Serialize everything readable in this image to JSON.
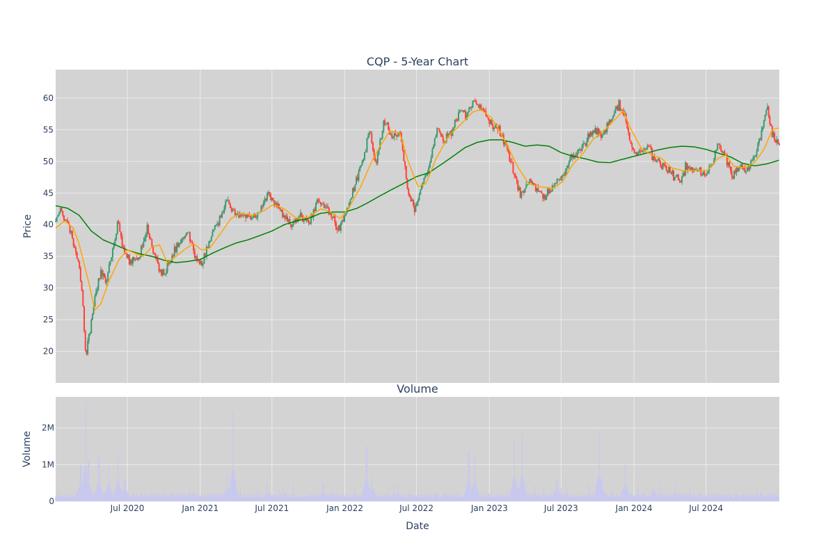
{
  "chart_data": [
    {
      "type": "candlestick",
      "title": "CQP - 5-Year Chart",
      "ylabel": "Price",
      "xlabel": "",
      "ylim": [
        15,
        64.5
      ],
      "yticks": [
        20,
        25,
        30,
        35,
        40,
        45,
        50,
        55,
        60
      ],
      "x_range": [
        "2020-01-02",
        "2025-01-02"
      ],
      "grid": true,
      "legend": "none",
      "colors": {
        "increasing": "#3d9970",
        "decreasing": "#ff4136",
        "ma_short": "#ffa500",
        "ma_long": "#008000",
        "plot_bg": "#d3d3d3",
        "grid": "#ebebeb"
      },
      "price_path": [
        [
          "2020-01-02",
          40.5
        ],
        [
          "2020-01-15",
          42.3
        ],
        [
          "2020-02-01",
          40.2
        ],
        [
          "2020-02-15",
          37.0
        ],
        [
          "2020-03-01",
          34.0
        ],
        [
          "2020-03-10",
          28.0
        ],
        [
          "2020-03-18",
          18.5
        ],
        [
          "2020-03-25",
          22.0
        ],
        [
          "2020-04-10",
          28.5
        ],
        [
          "2020-04-25",
          32.5
        ],
        [
          "2020-05-10",
          31.5
        ],
        [
          "2020-05-25",
          36.0
        ],
        [
          "2020-06-08",
          40.5
        ],
        [
          "2020-06-25",
          35.0
        ],
        [
          "2020-07-15",
          34.0
        ],
        [
          "2020-08-01",
          35.0
        ],
        [
          "2020-08-20",
          39.5
        ],
        [
          "2020-09-05",
          36.0
        ],
        [
          "2020-09-20",
          33.5
        ],
        [
          "2020-10-01",
          32.0
        ],
        [
          "2020-10-20",
          35.0
        ],
        [
          "2020-11-10",
          37.0
        ],
        [
          "2020-12-01",
          39.0
        ],
        [
          "2020-12-20",
          35.0
        ],
        [
          "2021-01-04",
          33.5
        ],
        [
          "2021-01-20",
          37.0
        ],
        [
          "2021-02-10",
          40.0
        ],
        [
          "2021-03-10",
          44.0
        ],
        [
          "2021-03-25",
          42.0
        ],
        [
          "2021-04-15",
          41.5
        ],
        [
          "2021-05-10",
          41.0
        ],
        [
          "2021-06-01",
          42.5
        ],
        [
          "2021-06-20",
          45.0
        ],
        [
          "2021-07-10",
          43.5
        ],
        [
          "2021-08-01",
          41.5
        ],
        [
          "2021-08-20",
          40.0
        ],
        [
          "2021-09-10",
          41.5
        ],
        [
          "2021-10-01",
          40.5
        ],
        [
          "2021-10-25",
          44.0
        ],
        [
          "2021-11-20",
          42.5
        ],
        [
          "2021-12-15",
          39.5
        ],
        [
          "2022-01-05",
          42.0
        ],
        [
          "2022-01-25",
          46.0
        ],
        [
          "2022-02-15",
          50.0
        ],
        [
          "2022-03-05",
          55.0
        ],
        [
          "2022-03-20",
          49.0
        ],
        [
          "2022-04-10",
          56.5
        ],
        [
          "2022-05-01",
          53.5
        ],
        [
          "2022-05-20",
          55.0
        ],
        [
          "2022-06-10",
          45.0
        ],
        [
          "2022-06-25",
          42.0
        ],
        [
          "2022-07-15",
          46.0
        ],
        [
          "2022-08-01",
          49.0
        ],
        [
          "2022-08-20",
          55.0
        ],
        [
          "2022-09-10",
          53.5
        ],
        [
          "2022-10-01",
          55.0
        ],
        [
          "2022-10-20",
          58.5
        ],
        [
          "2022-11-05",
          57.0
        ],
        [
          "2022-11-25",
          60.0
        ],
        [
          "2022-12-15",
          58.0
        ],
        [
          "2023-01-05",
          56.0
        ],
        [
          "2023-01-25",
          55.0
        ],
        [
          "2023-02-15",
          52.0
        ],
        [
          "2023-03-05",
          48.0
        ],
        [
          "2023-03-20",
          44.5
        ],
        [
          "2023-04-10",
          47.0
        ],
        [
          "2023-05-01",
          45.5
        ],
        [
          "2023-05-25",
          44.5
        ],
        [
          "2023-06-15",
          46.5
        ],
        [
          "2023-07-05",
          48.0
        ],
        [
          "2023-07-25",
          50.5
        ],
        [
          "2023-08-15",
          51.5
        ],
        [
          "2023-09-05",
          53.5
        ],
        [
          "2023-09-25",
          55.0
        ],
        [
          "2023-10-15",
          54.0
        ],
        [
          "2023-11-05",
          56.5
        ],
        [
          "2023-11-25",
          59.0
        ],
        [
          "2023-12-10",
          57.0
        ],
        [
          "2023-12-25",
          52.0
        ],
        [
          "2024-01-15",
          51.0
        ],
        [
          "2024-02-05",
          52.5
        ],
        [
          "2024-02-25",
          50.0
        ],
        [
          "2024-03-15",
          49.5
        ],
        [
          "2024-04-05",
          48.0
        ],
        [
          "2024-04-25",
          47.0
        ],
        [
          "2024-05-15",
          49.5
        ],
        [
          "2024-06-05",
          48.5
        ],
        [
          "2024-06-25",
          48.0
        ],
        [
          "2024-07-15",
          49.0
        ],
        [
          "2024-08-01",
          53.0
        ],
        [
          "2024-08-20",
          50.5
        ],
        [
          "2024-09-05",
          48.0
        ],
        [
          "2024-09-25",
          49.0
        ],
        [
          "2024-10-15",
          48.5
        ],
        [
          "2024-11-01",
          51.0
        ],
        [
          "2024-11-20",
          55.0
        ],
        [
          "2024-12-01",
          58.5
        ],
        [
          "2024-12-15",
          54.0
        ],
        [
          "2025-01-02",
          53.0
        ]
      ],
      "ma_long_path": [
        [
          "2020-01-02",
          43.0
        ],
        [
          "2020-02-01",
          42.6
        ],
        [
          "2020-03-01",
          41.5
        ],
        [
          "2020-04-01",
          39.0
        ],
        [
          "2020-05-01",
          37.6
        ],
        [
          "2020-06-01",
          36.8
        ],
        [
          "2020-07-01",
          36.0
        ],
        [
          "2020-08-01",
          35.4
        ],
        [
          "2020-09-01",
          35.0
        ],
        [
          "2020-10-01",
          34.4
        ],
        [
          "2020-11-01",
          34.0
        ],
        [
          "2020-12-01",
          34.2
        ],
        [
          "2021-01-01",
          34.5
        ],
        [
          "2021-02-01",
          35.5
        ],
        [
          "2021-03-01",
          36.3
        ],
        [
          "2021-04-01",
          37.1
        ],
        [
          "2021-05-01",
          37.6
        ],
        [
          "2021-06-01",
          38.3
        ],
        [
          "2021-07-01",
          39.0
        ],
        [
          "2021-08-01",
          40.0
        ],
        [
          "2021-09-01",
          40.6
        ],
        [
          "2021-10-01",
          41.0
        ],
        [
          "2021-11-01",
          41.8
        ],
        [
          "2021-12-01",
          42.0
        ],
        [
          "2022-01-01",
          42.0
        ],
        [
          "2022-02-01",
          42.6
        ],
        [
          "2022-03-01",
          43.5
        ],
        [
          "2022-04-01",
          44.6
        ],
        [
          "2022-05-01",
          45.6
        ],
        [
          "2022-06-01",
          46.6
        ],
        [
          "2022-07-01",
          47.6
        ],
        [
          "2022-08-01",
          48.2
        ],
        [
          "2022-09-01",
          49.5
        ],
        [
          "2022-10-01",
          50.8
        ],
        [
          "2022-11-01",
          52.2
        ],
        [
          "2022-12-01",
          53.0
        ],
        [
          "2023-01-01",
          53.4
        ],
        [
          "2023-02-01",
          53.4
        ],
        [
          "2023-03-01",
          53.0
        ],
        [
          "2023-04-01",
          52.4
        ],
        [
          "2023-05-01",
          52.6
        ],
        [
          "2023-06-01",
          52.4
        ],
        [
          "2023-07-01",
          51.4
        ],
        [
          "2023-08-01",
          50.8
        ],
        [
          "2023-09-01",
          50.4
        ],
        [
          "2023-10-01",
          49.9
        ],
        [
          "2023-11-01",
          49.8
        ],
        [
          "2023-12-01",
          50.3
        ],
        [
          "2024-01-01",
          50.8
        ],
        [
          "2024-02-01",
          51.3
        ],
        [
          "2024-03-01",
          51.8
        ],
        [
          "2024-04-01",
          52.2
        ],
        [
          "2024-05-01",
          52.4
        ],
        [
          "2024-06-01",
          52.3
        ],
        [
          "2024-07-01",
          51.9
        ],
        [
          "2024-08-01",
          51.3
        ],
        [
          "2024-09-01",
          50.7
        ],
        [
          "2024-10-01",
          49.7
        ],
        [
          "2024-11-01",
          49.3
        ],
        [
          "2024-12-01",
          49.6
        ],
        [
          "2025-01-02",
          50.2
        ]
      ],
      "ma_short_path": [
        [
          "2020-01-02",
          39.5
        ],
        [
          "2020-01-25",
          40.6
        ],
        [
          "2020-02-15",
          39.5
        ],
        [
          "2020-03-01",
          37.0
        ],
        [
          "2020-03-25",
          31.0
        ],
        [
          "2020-04-10",
          26.5
        ],
        [
          "2020-04-25",
          27.5
        ],
        [
          "2020-05-15",
          31.0
        ],
        [
          "2020-06-10",
          34.5
        ],
        [
          "2020-07-01",
          36.0
        ],
        [
          "2020-07-20",
          35.5
        ],
        [
          "2020-08-10",
          35.0
        ],
        [
          "2020-09-01",
          36.5
        ],
        [
          "2020-09-20",
          36.8
        ],
        [
          "2020-10-10",
          34.0
        ],
        [
          "2020-11-01",
          35.0
        ],
        [
          "2020-11-25",
          36.2
        ],
        [
          "2020-12-15",
          37.0
        ],
        [
          "2021-01-05",
          36.0
        ],
        [
          "2021-01-25",
          36.3
        ],
        [
          "2021-02-20",
          38.5
        ],
        [
          "2021-03-20",
          41.0
        ],
        [
          "2021-04-15",
          41.8
        ],
        [
          "2021-05-15",
          41.5
        ],
        [
          "2021-06-10",
          42.2
        ],
        [
          "2021-07-05",
          43.2
        ],
        [
          "2021-08-01",
          42.5
        ],
        [
          "2021-09-01",
          41.0
        ],
        [
          "2021-10-01",
          41.2
        ],
        [
          "2021-11-01",
          42.5
        ],
        [
          "2021-11-25",
          42.0
        ],
        [
          "2021-12-20",
          41.0
        ],
        [
          "2022-01-10",
          42.5
        ],
        [
          "2022-02-10",
          46.0
        ],
        [
          "2022-03-10",
          50.0
        ],
        [
          "2022-04-01",
          52.5
        ],
        [
          "2022-04-25",
          54.8
        ],
        [
          "2022-05-20",
          54.5
        ],
        [
          "2022-06-10",
          50.0
        ],
        [
          "2022-07-05",
          46.0
        ],
        [
          "2022-07-25",
          46.5
        ],
        [
          "2022-08-20",
          50.5
        ],
        [
          "2022-09-20",
          54.0
        ],
        [
          "2022-10-20",
          55.8
        ],
        [
          "2022-11-20",
          57.8
        ],
        [
          "2022-12-10",
          58.2
        ],
        [
          "2023-01-05",
          57.0
        ],
        [
          "2023-01-25",
          55.0
        ],
        [
          "2023-02-15",
          52.5
        ],
        [
          "2023-03-15",
          49.0
        ],
        [
          "2023-04-10",
          46.5
        ],
        [
          "2023-05-10",
          46.0
        ],
        [
          "2023-06-10",
          45.7
        ],
        [
          "2023-07-05",
          46.8
        ],
        [
          "2023-07-30",
          49.5
        ],
        [
          "2023-08-25",
          51.2
        ],
        [
          "2023-09-20",
          53.5
        ],
        [
          "2023-10-20",
          55.0
        ],
        [
          "2023-11-20",
          57.0
        ],
        [
          "2023-12-05",
          58.0
        ],
        [
          "2023-12-25",
          55.0
        ],
        [
          "2024-01-20",
          52.0
        ],
        [
          "2024-02-15",
          51.0
        ],
        [
          "2024-03-10",
          50.5
        ],
        [
          "2024-04-05",
          49.0
        ],
        [
          "2024-05-05",
          48.5
        ],
        [
          "2024-06-05",
          48.6
        ],
        [
          "2024-07-05",
          48.6
        ],
        [
          "2024-08-01",
          50.5
        ],
        [
          "2024-08-20",
          51.0
        ],
        [
          "2024-09-10",
          49.2
        ],
        [
          "2024-10-05",
          49.0
        ],
        [
          "2024-11-01",
          49.8
        ],
        [
          "2024-11-25",
          52.0
        ],
        [
          "2024-12-15",
          55.0
        ],
        [
          "2025-01-02",
          55.3
        ]
      ]
    },
    {
      "type": "bar",
      "title": "Volume",
      "ylabel": "Volume",
      "xlabel": "Date",
      "ylim": [
        0,
        2850000
      ],
      "yticks": [
        0,
        1000000,
        2000000
      ],
      "ytick_labels": [
        "0",
        "1M",
        "2M"
      ],
      "x_ticks": [
        "2020-07-01",
        "2021-01-01",
        "2021-07-01",
        "2022-01-01",
        "2022-07-01",
        "2023-01-01",
        "2023-07-01",
        "2024-01-01",
        "2024-07-01"
      ],
      "x_tick_labels": [
        "Jul 2020",
        "Jan 2021",
        "Jul 2021",
        "Jan 2022",
        "Jul 2022",
        "Jan 2023",
        "Jul 2023",
        "Jan 2024",
        "Jul 2024"
      ],
      "grid": true,
      "colors": {
        "bars": "#c8c8f0"
      },
      "baseline_volume": 150000,
      "spikes": [
        [
          "2020-03-05",
          1000000
        ],
        [
          "2020-03-18",
          2700000
        ],
        [
          "2020-03-25",
          1100000
        ],
        [
          "2020-04-20",
          1200000
        ],
        [
          "2020-05-15",
          1000000
        ],
        [
          "2020-06-08",
          1350000
        ],
        [
          "2020-06-25",
          600000
        ],
        [
          "2021-03-11",
          700000
        ],
        [
          "2021-03-25",
          2450000
        ],
        [
          "2022-02-25",
          1500000
        ],
        [
          "2022-03-10",
          650000
        ],
        [
          "2022-11-10",
          1350000
        ],
        [
          "2022-11-25",
          1250000
        ],
        [
          "2023-03-05",
          1700000
        ],
        [
          "2023-03-25",
          1850000
        ],
        [
          "2023-06-20",
          600000
        ],
        [
          "2023-10-05",
          1950000
        ],
        [
          "2023-10-12",
          600000
        ],
        [
          "2023-12-10",
          1050000
        ],
        [
          "2024-02-20",
          400000
        ]
      ]
    }
  ]
}
